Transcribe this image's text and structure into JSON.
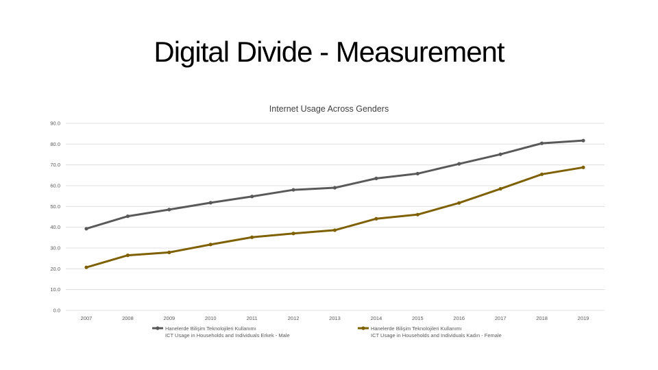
{
  "slide": {
    "title": "Digital Divide - Measurement"
  },
  "chart_data": {
    "type": "line",
    "title": "Internet Usage Across Genders",
    "x": [
      "2007",
      "2008",
      "2009",
      "2010",
      "2011",
      "2012",
      "2013",
      "2014",
      "2015",
      "2016",
      "2017",
      "2018",
      "2019"
    ],
    "ylim": [
      0,
      90
    ],
    "yticks": [
      "0.0",
      "10.0",
      "20.0",
      "30.0",
      "40.0",
      "50.0",
      "60.0",
      "70.0",
      "80.0",
      "90.0"
    ],
    "grid": true,
    "legend_position": "bottom",
    "series": [
      {
        "name_line1": "Hanelerde Bilişim Teknolojileri Kullanımı",
        "name_line2": "ICT Usage in Households and Individuals Erkek - Male",
        "color": "#595959",
        "values": [
          39.3,
          45.3,
          48.5,
          51.8,
          54.8,
          58.0,
          59.0,
          63.5,
          65.8,
          70.5,
          75.1,
          80.4,
          81.7
        ]
      },
      {
        "name_line1": "Hanelerde Bilişim Teknolojileri Kullanımı",
        "name_line2": "ICT Usage in Households and Individuals Kadın - Female",
        "color": "#7f6000",
        "values": [
          20.7,
          26.5,
          27.9,
          31.7,
          35.2,
          37.0,
          38.6,
          44.1,
          46.1,
          51.7,
          58.5,
          65.5,
          68.8
        ]
      }
    ]
  }
}
